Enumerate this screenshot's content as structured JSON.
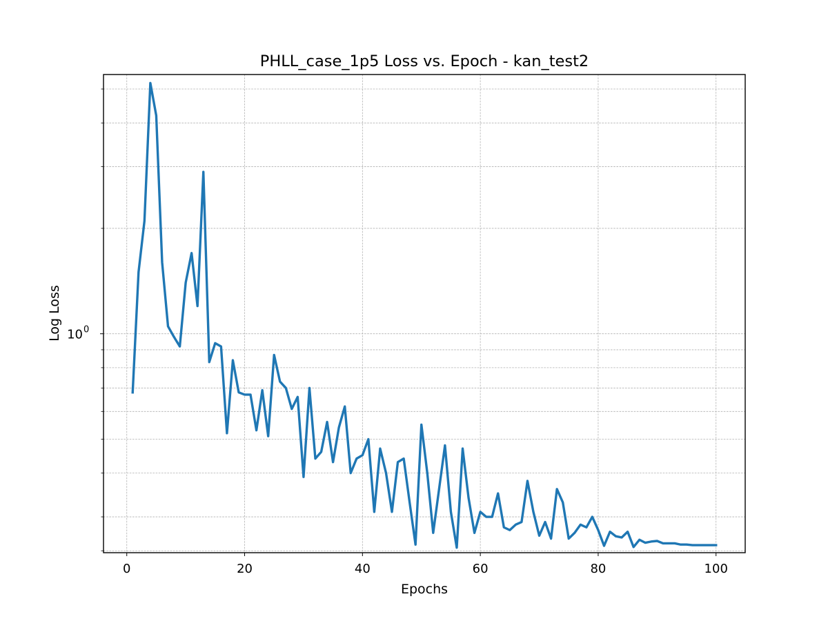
{
  "chart_data": {
    "type": "line",
    "title": "PHLL_case_1p5 Loss vs. Epoch - kan_test2",
    "xlabel": "Epochs",
    "ylabel": "Log Loss",
    "yscale": "log",
    "xlim": [
      -3.95,
      104.95
    ],
    "ylim": [
      0.237,
      5.5
    ],
    "grid": true,
    "x_ticks": [
      0,
      20,
      40,
      60,
      80,
      100
    ],
    "x_tick_labels": [
      "0",
      "20",
      "40",
      "60",
      "80",
      "100"
    ],
    "y_major_ticks": [
      1.0
    ],
    "y_major_tick_base": "10",
    "y_major_tick_exp": "0",
    "y_minor_ticks": [
      0.24,
      0.3,
      0.4,
      0.5,
      0.6,
      0.7,
      0.8,
      0.9,
      2,
      3,
      4,
      5
    ],
    "series": [
      {
        "color": "#1f77b4",
        "x": [
          1,
          2,
          3,
          4,
          5,
          6,
          7,
          8,
          9,
          10,
          11,
          12,
          13,
          14,
          15,
          16,
          17,
          18,
          19,
          20,
          21,
          22,
          23,
          24,
          25,
          26,
          27,
          28,
          29,
          30,
          31,
          32,
          33,
          34,
          35,
          36,
          37,
          38,
          39,
          40,
          41,
          42,
          43,
          44,
          45,
          46,
          47,
          48,
          49,
          50,
          51,
          52,
          53,
          54,
          55,
          56,
          57,
          58,
          59,
          60,
          61,
          62,
          63,
          64,
          65,
          66,
          67,
          68,
          69,
          70,
          71,
          72,
          73,
          74,
          75,
          76,
          77,
          78,
          79,
          80,
          81,
          82,
          83,
          84,
          85,
          86,
          87,
          88,
          89,
          90,
          91,
          92,
          93,
          94,
          95,
          96,
          97,
          98,
          99,
          100
        ],
        "y": [
          0.68,
          1.5,
          2.1,
          5.2,
          4.2,
          1.6,
          1.05,
          0.98,
          0.92,
          1.4,
          1.7,
          1.2,
          2.9,
          0.83,
          0.94,
          0.92,
          0.52,
          0.84,
          0.68,
          0.67,
          0.67,
          0.53,
          0.69,
          0.51,
          0.87,
          0.73,
          0.7,
          0.61,
          0.66,
          0.39,
          0.7,
          0.44,
          0.46,
          0.56,
          0.43,
          0.54,
          0.62,
          0.4,
          0.44,
          0.45,
          0.5,
          0.31,
          0.47,
          0.4,
          0.31,
          0.43,
          0.44,
          0.33,
          0.25,
          0.55,
          0.4,
          0.27,
          0.36,
          0.48,
          0.31,
          0.245,
          0.47,
          0.34,
          0.27,
          0.31,
          0.3,
          0.3,
          0.35,
          0.28,
          0.275,
          0.285,
          0.29,
          0.38,
          0.31,
          0.265,
          0.29,
          0.26,
          0.36,
          0.33,
          0.26,
          0.27,
          0.285,
          0.28,
          0.3,
          0.275,
          0.248,
          0.272,
          0.264,
          0.262,
          0.272,
          0.246,
          0.258,
          0.253,
          0.255,
          0.256,
          0.252,
          0.252,
          0.252,
          0.25,
          0.25,
          0.249,
          0.249,
          0.249,
          0.249,
          0.249
        ]
      }
    ]
  }
}
